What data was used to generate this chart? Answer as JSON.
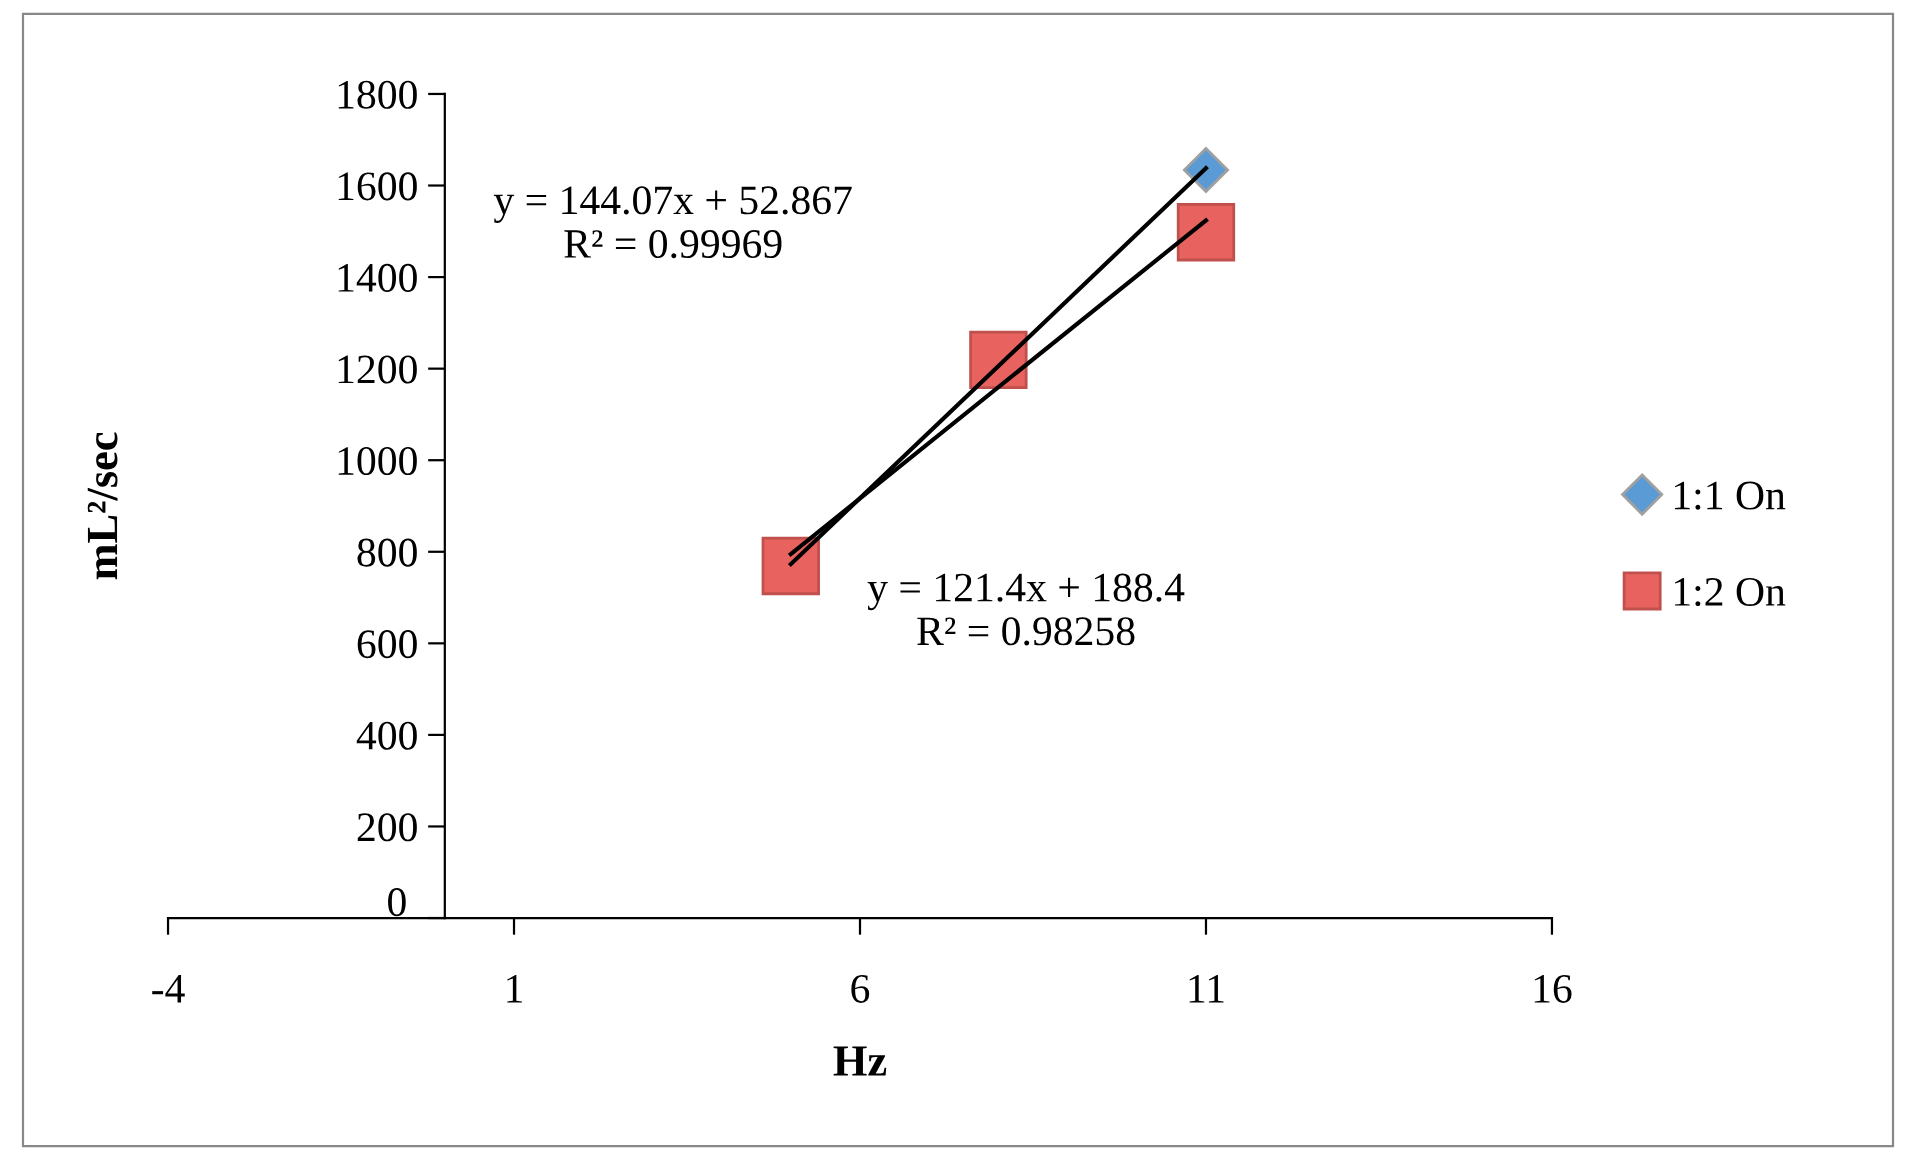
{
  "chart_data": {
    "type": "scatter",
    "xlabel": "Hz",
    "ylabel": "mL²/sec",
    "xlim": [
      -4,
      16
    ],
    "xticks": [
      -4,
      1,
      6,
      11,
      16
    ],
    "ylim": [
      0,
      1800
    ],
    "yticks": [
      0,
      200,
      400,
      600,
      800,
      1000,
      1200,
      1400,
      1600,
      1800
    ],
    "grid": false,
    "legend": "right",
    "series": [
      {
        "name": "1:1 On",
        "color": "#5b9bd5",
        "marker": "diamond",
        "x": [
          11
        ],
        "values": [
          1634
        ]
      },
      {
        "name": "1:2 On",
        "color": "#e8635f",
        "marker": "square",
        "x": [
          5,
          8,
          11
        ],
        "values": [
          769,
          1219,
          1498
        ]
      },
      {
        "type": "line",
        "color": "#000000",
        "marker": "none",
        "x": [
          5,
          11
        ],
        "values": [
          773,
          1638
        ]
      },
      {
        "type": "line",
        "color": "#000000",
        "marker": "none",
        "x": [
          5,
          11
        ],
        "values": [
          795,
          1524
        ]
      }
    ],
    "annotations": [
      "y = 144.07x + 52.867\nR² = 0.99969",
      "y = 121.4x + 188.4\nR² = 0.98258"
    ]
  }
}
